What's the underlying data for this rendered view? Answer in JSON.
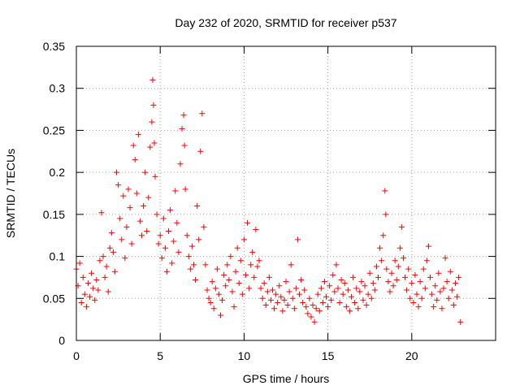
{
  "chart_data": {
    "type": "scatter",
    "title": "Day 232 of 2020, SRMTID for receiver p537",
    "xlabel": "GPS time / hours",
    "ylabel": "SRMTID / TECUs",
    "xlim": [
      0,
      25
    ],
    "ylim": [
      0,
      0.35
    ],
    "xticks": [
      "0",
      "5",
      "10",
      "15",
      "20"
    ],
    "xtick_values": [
      0,
      5,
      10,
      15,
      20
    ],
    "yticks": [
      "0",
      "0.05",
      "0.1",
      "0.15",
      "0.2",
      "0.25",
      "0.3",
      "0.35"
    ],
    "ytick_values": [
      0,
      0.05,
      0.1,
      0.15,
      0.2,
      0.25,
      0.3,
      0.35
    ],
    "grid": true,
    "marker": "+",
    "series": [
      {
        "name": "p537",
        "color": "#ff0000",
        "points": [
          [
            0.0,
            0.085
          ],
          [
            0.1,
            0.065
          ],
          [
            0.2,
            0.092
          ],
          [
            0.3,
            0.045
          ],
          [
            0.4,
            0.075
          ],
          [
            0.5,
            0.055
          ],
          [
            0.6,
            0.04
          ],
          [
            0.7,
            0.068
          ],
          [
            0.8,
            0.052
          ],
          [
            0.9,
            0.08
          ],
          [
            1.0,
            0.062
          ],
          [
            1.1,
            0.048
          ],
          [
            1.2,
            0.072
          ],
          [
            1.3,
            0.06
          ],
          [
            1.4,
            0.095
          ],
          [
            1.5,
            0.152
          ],
          [
            1.6,
            0.1
          ],
          [
            1.7,
            0.075
          ],
          [
            1.8,
            0.088
          ],
          [
            1.9,
            0.058
          ],
          [
            2.0,
            0.11
          ],
          [
            2.1,
            0.128
          ],
          [
            2.2,
            0.105
          ],
          [
            2.3,
            0.082
          ],
          [
            2.4,
            0.2
          ],
          [
            2.5,
            0.185
          ],
          [
            2.6,
            0.145
          ],
          [
            2.7,
            0.12
          ],
          [
            2.8,
            0.172
          ],
          [
            2.9,
            0.098
          ],
          [
            3.0,
            0.135
          ],
          [
            3.1,
            0.18
          ],
          [
            3.2,
            0.158
          ],
          [
            3.3,
            0.115
          ],
          [
            3.4,
            0.232
          ],
          [
            3.5,
            0.215
          ],
          [
            3.6,
            0.175
          ],
          [
            3.7,
            0.245
          ],
          [
            3.8,
            0.142
          ],
          [
            3.9,
            0.125
          ],
          [
            4.0,
            0.16
          ],
          [
            4.1,
            0.2
          ],
          [
            4.2,
            0.13
          ],
          [
            4.3,
            0.17
          ],
          [
            4.4,
            0.23
          ],
          [
            4.5,
            0.26
          ],
          [
            4.55,
            0.31
          ],
          [
            4.6,
            0.28
          ],
          [
            4.65,
            0.235
          ],
          [
            4.7,
            0.195
          ],
          [
            4.8,
            0.15
          ],
          [
            4.9,
            0.115
          ],
          [
            5.0,
            0.125
          ],
          [
            5.1,
            0.098
          ],
          [
            5.2,
            0.145
          ],
          [
            5.3,
            0.11
          ],
          [
            5.4,
            0.082
          ],
          [
            5.5,
            0.13
          ],
          [
            5.6,
            0.155
          ],
          [
            5.7,
            0.092
          ],
          [
            5.8,
            0.118
          ],
          [
            5.9,
            0.178
          ],
          [
            6.0,
            0.14
          ],
          [
            6.1,
            0.105
          ],
          [
            6.2,
            0.21
          ],
          [
            6.3,
            0.252
          ],
          [
            6.4,
            0.268
          ],
          [
            6.45,
            0.232
          ],
          [
            6.5,
            0.18
          ],
          [
            6.6,
            0.125
          ],
          [
            6.7,
            0.1
          ],
          [
            6.8,
            0.085
          ],
          [
            6.9,
            0.112
          ],
          [
            7.0,
            0.09
          ],
          [
            7.1,
            0.072
          ],
          [
            7.2,
            0.16
          ],
          [
            7.3,
            0.12
          ],
          [
            7.4,
            0.225
          ],
          [
            7.5,
            0.27
          ],
          [
            7.6,
            0.135
          ],
          [
            7.7,
            0.09
          ],
          [
            7.8,
            0.06
          ],
          [
            7.9,
            0.05
          ],
          [
            8.0,
            0.045
          ],
          [
            8.1,
            0.07
          ],
          [
            8.2,
            0.038
          ],
          [
            8.3,
            0.062
          ],
          [
            8.4,
            0.085
          ],
          [
            8.5,
            0.055
          ],
          [
            8.6,
            0.03
          ],
          [
            8.7,
            0.048
          ],
          [
            8.8,
            0.078
          ],
          [
            8.9,
            0.065
          ],
          [
            9.0,
            0.09
          ],
          [
            9.1,
            0.072
          ],
          [
            9.2,
            0.1
          ],
          [
            9.3,
            0.058
          ],
          [
            9.4,
            0.04
          ],
          [
            9.5,
            0.082
          ],
          [
            9.6,
            0.11
          ],
          [
            9.7,
            0.068
          ],
          [
            9.8,
            0.095
          ],
          [
            9.9,
            0.055
          ],
          [
            10.0,
            0.12
          ],
          [
            10.1,
            0.078
          ],
          [
            10.2,
            0.14
          ],
          [
            10.3,
            0.062
          ],
          [
            10.4,
            0.09
          ],
          [
            10.5,
            0.105
          ],
          [
            10.6,
            0.075
          ],
          [
            10.7,
            0.132
          ],
          [
            10.8,
            0.088
          ],
          [
            10.9,
            0.095
          ],
          [
            11.0,
            0.062
          ],
          [
            11.1,
            0.05
          ],
          [
            11.2,
            0.068
          ],
          [
            11.3,
            0.042
          ],
          [
            11.4,
            0.058
          ],
          [
            11.5,
            0.075
          ],
          [
            11.6,
            0.048
          ],
          [
            11.7,
            0.06
          ],
          [
            11.8,
            0.038
          ],
          [
            11.9,
            0.055
          ],
          [
            12.0,
            0.045
          ],
          [
            12.1,
            0.065
          ],
          [
            12.2,
            0.052
          ],
          [
            12.3,
            0.035
          ],
          [
            12.4,
            0.048
          ],
          [
            12.5,
            0.07
          ],
          [
            12.6,
            0.042
          ],
          [
            12.7,
            0.058
          ],
          [
            12.8,
            0.09
          ],
          [
            12.9,
            0.05
          ],
          [
            13.0,
            0.038
          ],
          [
            13.1,
            0.062
          ],
          [
            13.2,
            0.12
          ],
          [
            13.3,
            0.055
          ],
          [
            13.4,
            0.072
          ],
          [
            13.5,
            0.045
          ],
          [
            13.6,
            0.06
          ],
          [
            13.7,
            0.04
          ],
          [
            13.8,
            0.032
          ],
          [
            13.9,
            0.05
          ],
          [
            14.0,
            0.028
          ],
          [
            14.1,
            0.042
          ],
          [
            14.2,
            0.022
          ],
          [
            14.3,
            0.038
          ],
          [
            14.4,
            0.055
          ],
          [
            14.5,
            0.035
          ],
          [
            14.6,
            0.062
          ],
          [
            14.7,
            0.045
          ],
          [
            14.8,
            0.07
          ],
          [
            14.9,
            0.052
          ],
          [
            15.0,
            0.04
          ],
          [
            15.1,
            0.065
          ],
          [
            15.2,
            0.048
          ],
          [
            15.3,
            0.078
          ],
          [
            15.4,
            0.058
          ],
          [
            15.5,
            0.09
          ],
          [
            15.6,
            0.062
          ],
          [
            15.7,
            0.045
          ],
          [
            15.8,
            0.072
          ],
          [
            15.9,
            0.055
          ],
          [
            16.0,
            0.068
          ],
          [
            16.1,
            0.04
          ],
          [
            16.2,
            0.06
          ],
          [
            16.3,
            0.035
          ],
          [
            16.4,
            0.052
          ],
          [
            16.5,
            0.075
          ],
          [
            16.6,
            0.045
          ],
          [
            16.7,
            0.062
          ],
          [
            16.8,
            0.038
          ],
          [
            16.9,
            0.058
          ],
          [
            17.0,
            0.07
          ],
          [
            17.1,
            0.048
          ],
          [
            17.2,
            0.065
          ],
          [
            17.3,
            0.042
          ],
          [
            17.4,
            0.055
          ],
          [
            17.5,
            0.08
          ],
          [
            17.6,
            0.05
          ],
          [
            17.7,
            0.068
          ],
          [
            17.8,
            0.06
          ],
          [
            17.9,
            0.088
          ],
          [
            18.0,
            0.075
          ],
          [
            18.1,
            0.11
          ],
          [
            18.2,
            0.095
          ],
          [
            18.3,
            0.125
          ],
          [
            18.4,
            0.178
          ],
          [
            18.45,
            0.15
          ],
          [
            18.5,
            0.085
          ],
          [
            18.6,
            0.07
          ],
          [
            18.7,
            0.058
          ],
          [
            18.8,
            0.08
          ],
          [
            18.9,
            0.065
          ],
          [
            19.0,
            0.095
          ],
          [
            19.1,
            0.072
          ],
          [
            19.2,
            0.088
          ],
          [
            19.3,
            0.11
          ],
          [
            19.4,
            0.135
          ],
          [
            19.5,
            0.098
          ],
          [
            19.6,
            0.075
          ],
          [
            19.7,
            0.06
          ],
          [
            19.8,
            0.085
          ],
          [
            19.9,
            0.05
          ],
          [
            20.0,
            0.068
          ],
          [
            20.1,
            0.045
          ],
          [
            20.2,
            0.078
          ],
          [
            20.3,
            0.055
          ],
          [
            20.4,
            0.04
          ],
          [
            20.5,
            0.07
          ],
          [
            20.6,
            0.05
          ],
          [
            20.7,
            0.085
          ],
          [
            20.8,
            0.062
          ],
          [
            20.9,
            0.095
          ],
          [
            21.0,
            0.112
          ],
          [
            21.1,
            0.075
          ],
          [
            21.2,
            0.055
          ],
          [
            21.3,
            0.04
          ],
          [
            21.4,
            0.065
          ],
          [
            21.5,
            0.048
          ],
          [
            21.6,
            0.08
          ],
          [
            21.7,
            0.058
          ],
          [
            21.8,
            0.038
          ],
          [
            21.9,
            0.062
          ],
          [
            22.0,
            0.098
          ],
          [
            22.1,
            0.07
          ],
          [
            22.2,
            0.05
          ],
          [
            22.3,
            0.082
          ],
          [
            22.4,
            0.06
          ],
          [
            22.5,
            0.042
          ],
          [
            22.6,
            0.068
          ],
          [
            22.7,
            0.052
          ],
          [
            22.8,
            0.075
          ],
          [
            22.9,
            0.022
          ]
        ]
      }
    ]
  }
}
